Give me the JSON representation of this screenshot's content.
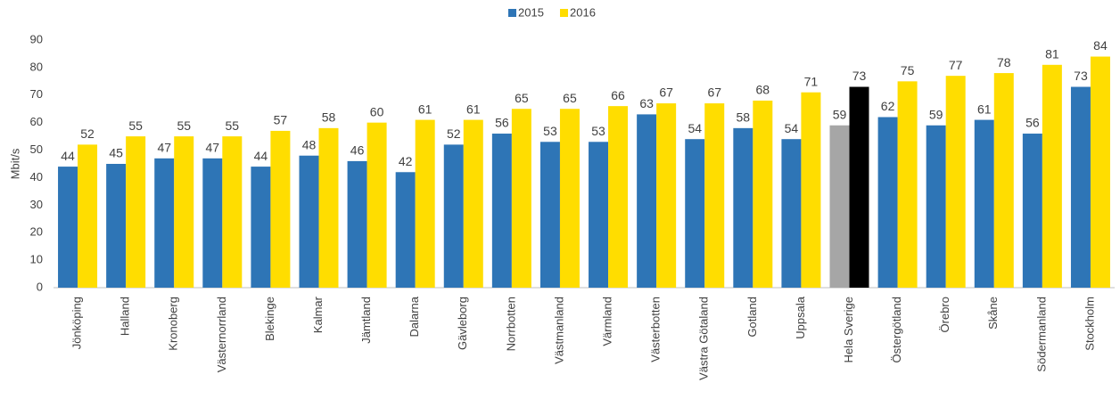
{
  "chart_data": {
    "type": "bar",
    "y_label": "Mbit/s",
    "categories": [
      "Jönköping",
      "Halland",
      "Kronoberg",
      "Västernorrland",
      "Blekinge",
      "Kalmar",
      "Jämtland",
      "Dalarna",
      "Gävleborg",
      "Norrbotten",
      "Västmanland",
      "Värmland",
      "Västerbotten",
      "Västra Götaland",
      "Gotland",
      "Uppsala",
      "Hela Sverige",
      "Östergötland",
      "Örebro",
      "Skåne",
      "Södermanland",
      "Stockholm"
    ],
    "series": [
      {
        "name": "2015",
        "color": "#2e75b6",
        "colors": [
          "#2e75b6",
          "#2e75b6",
          "#2e75b6",
          "#2e75b6",
          "#2e75b6",
          "#2e75b6",
          "#2e75b6",
          "#2e75b6",
          "#2e75b6",
          "#2e75b6",
          "#2e75b6",
          "#2e75b6",
          "#2e75b6",
          "#2e75b6",
          "#2e75b6",
          "#2e75b6",
          "#a6a6a6",
          "#2e75b6",
          "#2e75b6",
          "#2e75b6",
          "#2e75b6",
          "#2e75b6"
        ],
        "values": [
          44,
          45,
          47,
          47,
          44,
          48,
          46,
          42,
          52,
          56,
          53,
          53,
          63,
          54,
          58,
          54,
          59,
          62,
          59,
          61,
          56,
          73
        ]
      },
      {
        "name": "2016",
        "color": "#ffdd00",
        "colors": [
          "#ffdd00",
          "#ffdd00",
          "#ffdd00",
          "#ffdd00",
          "#ffdd00",
          "#ffdd00",
          "#ffdd00",
          "#ffdd00",
          "#ffdd00",
          "#ffdd00",
          "#ffdd00",
          "#ffdd00",
          "#ffdd00",
          "#ffdd00",
          "#ffdd00",
          "#ffdd00",
          "#000000",
          "#ffdd00",
          "#ffdd00",
          "#ffdd00",
          "#ffdd00",
          "#ffdd00"
        ],
        "values": [
          52,
          55,
          55,
          55,
          57,
          58,
          60,
          61,
          61,
          65,
          65,
          66,
          67,
          67,
          68,
          71,
          73,
          75,
          77,
          78,
          81,
          84
        ]
      }
    ],
    "ylim": [
      0,
      90
    ],
    "yticks": [
      0,
      10,
      20,
      30,
      40,
      50,
      60,
      70,
      80,
      90
    ],
    "grid": false,
    "legend": "top"
  }
}
